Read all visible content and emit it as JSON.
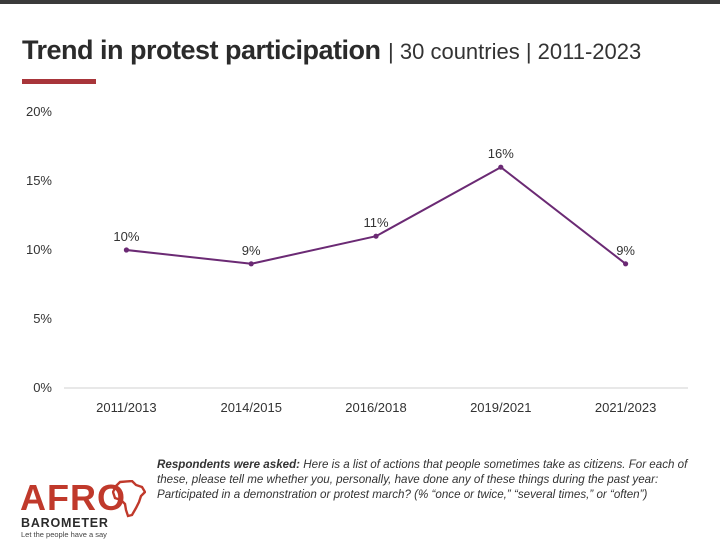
{
  "header": {
    "title": "Trend in protest participation",
    "subtitle": "| 30 countries | 2011-2023"
  },
  "chart_data": {
    "type": "line",
    "title": "Trend in protest participation",
    "categories": [
      "2011/2013",
      "2014/2015",
      "2016/2018",
      "2019/2021",
      "2021/2023"
    ],
    "series": [
      {
        "name": "Participated in a demonstration or protest march",
        "values": [
          10,
          9,
          11,
          16,
          9
        ],
        "labels": [
          "10%",
          "9%",
          "11%",
          "16%",
          "9%"
        ]
      }
    ],
    "y_ticks": [
      0,
      5,
      10,
      15,
      20
    ],
    "y_tick_labels": [
      "0%",
      "5%",
      "10%",
      "15%",
      "20%"
    ],
    "ylim": [
      0,
      20
    ],
    "xlabel": "",
    "ylabel": "",
    "grid": false,
    "line_color": "#6b2a74"
  },
  "note": {
    "lead": "Respondents were asked:",
    "text": "Here is a list of actions that people sometimes take as citizens. For each of these, please tell me whether you, personally, have done any of these things during the past year: Participated in a demonstration or protest march? (% “once or twice,” “several times,” or “often”)"
  },
  "logo": {
    "name": "AFRO",
    "name2": "BAROMETER",
    "tagline": "Let the people have a say"
  },
  "colors": {
    "accent": "#a8353a",
    "brand_red": "#c0392b",
    "series": "#6b2a74"
  }
}
